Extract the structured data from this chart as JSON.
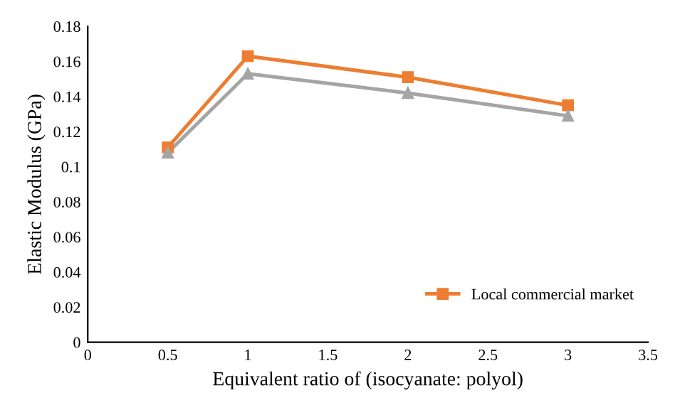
{
  "chart_data": {
    "type": "line",
    "xlabel": "Equivalent ratio of (isocyanate: polyol)",
    "ylabel": "Elastic Modulus (GPa)",
    "x": [
      0.5,
      1,
      2,
      3
    ],
    "series": [
      {
        "name": "Local commercial market",
        "color": "#ed7d31",
        "marker": "square",
        "values": [
          0.111,
          0.163,
          0.151,
          0.135
        ]
      },
      {
        "color": "#a5a5a5",
        "marker": "triangle",
        "values": [
          0.108,
          0.153,
          0.142,
          0.129
        ]
      }
    ],
    "xlim": [
      0,
      3.5
    ],
    "xticks": [
      0,
      0.5,
      1,
      1.5,
      2,
      2.5,
      3,
      3.5
    ],
    "ylim": [
      0,
      0.18
    ],
    "yticks": [
      0,
      0.02,
      0.04,
      0.06,
      0.08,
      0.1,
      0.12,
      0.14,
      0.16,
      0.18
    ],
    "grid": false,
    "legend": "bottom right",
    "line_style": "solid"
  }
}
